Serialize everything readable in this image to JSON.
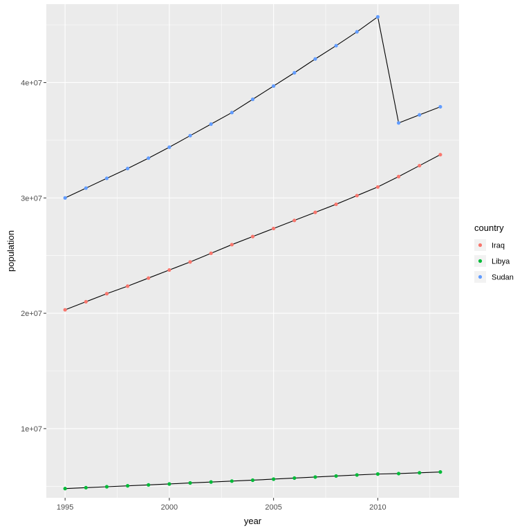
{
  "chart_data": {
    "type": "line",
    "title": "",
    "xlabel": "year",
    "ylabel": "population",
    "xlim": [
      1994.1,
      2013.9
    ],
    "ylim": [
      4000000,
      46800000
    ],
    "x_ticks": [
      1995,
      2000,
      2005,
      2010
    ],
    "x_tick_labels": [
      "1995",
      "2000",
      "2005",
      "2010"
    ],
    "y_ticks": [
      10000000,
      20000000,
      30000000,
      40000000
    ],
    "y_tick_labels": [
      "1e+07",
      "2e+07",
      "3e+07",
      "4e+07"
    ],
    "grid": true,
    "legend": {
      "title": "country",
      "position": "right"
    },
    "x": [
      1995,
      1996,
      1997,
      1998,
      1999,
      2000,
      2001,
      2002,
      2003,
      2004,
      2005,
      2006,
      2007,
      2008,
      2009,
      2010,
      2011,
      2012,
      2013
    ],
    "series": [
      {
        "name": "Iraq",
        "color": "#F8766D",
        "values": [
          20300000,
          21000000,
          21700000,
          22350000,
          23050000,
          23750000,
          24450000,
          25200000,
          25950000,
          26650000,
          27350000,
          28050000,
          28750000,
          29450000,
          30200000,
          30950000,
          31850000,
          32800000,
          33750000
        ]
      },
      {
        "name": "Libya",
        "color": "#00BA38",
        "values": [
          4800000,
          4880000,
          4960000,
          5040000,
          5120000,
          5200000,
          5290000,
          5370000,
          5450000,
          5530000,
          5620000,
          5710000,
          5800000,
          5890000,
          5980000,
          6060000,
          6100000,
          6170000,
          6240000
        ]
      },
      {
        "name": "Sudan",
        "color": "#619CFF",
        "values": [
          30000000,
          30850000,
          31700000,
          32550000,
          33450000,
          34400000,
          35400000,
          36400000,
          37400000,
          38550000,
          39700000,
          40850000,
          42050000,
          43200000,
          44400000,
          45700000,
          36500000,
          37200000,
          37900000
        ]
      }
    ],
    "line_color": "#000000",
    "panel_background": "#EBEBEB",
    "grid_color": "#FFFFFF"
  }
}
